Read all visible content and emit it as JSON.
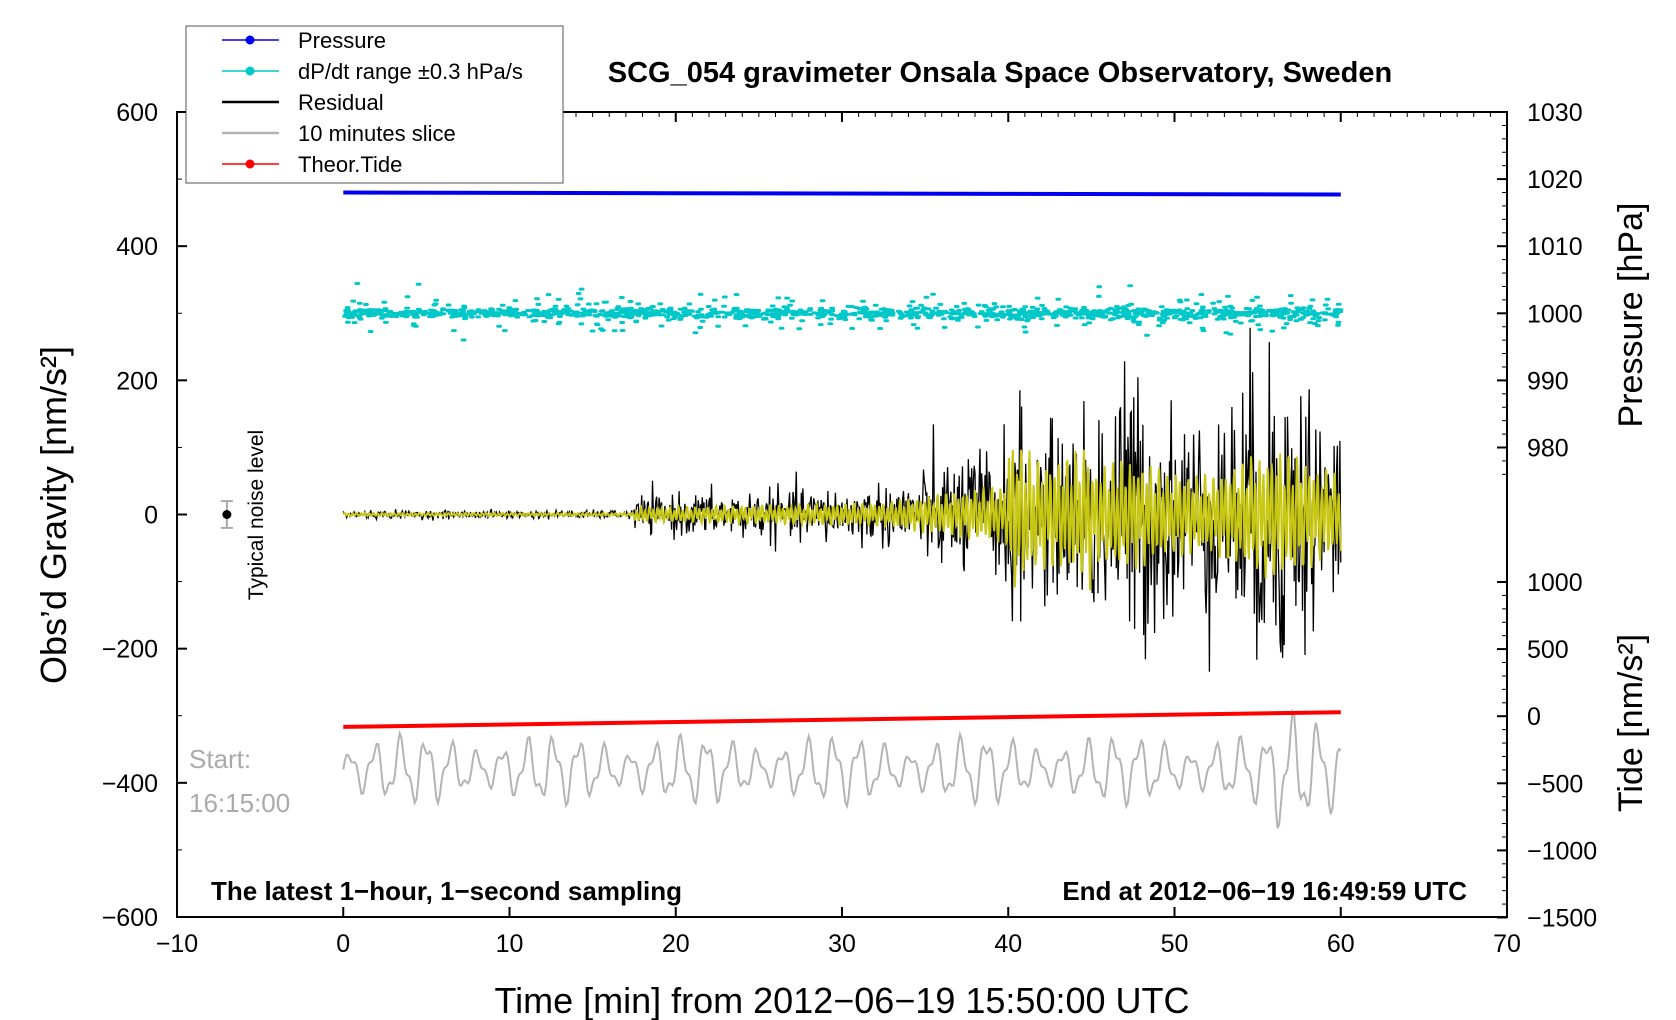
{
  "chart_data": {
    "type": "line",
    "title": "SCG_054 gravimeter Onsala Space Observatory, Sweden",
    "xlabel": "Time [min] from 2012−06−19 15:50:00 UTC",
    "ylabel_left": "Obs’d Gravity [nm/s²]",
    "ylabel_right_top": "Pressure [hPa]",
    "ylabel_right_bottom": "Tide [nm/s²]",
    "xlim": [
      -10,
      70
    ],
    "ylim_left": [
      -600,
      600
    ],
    "ylim_pressure": [
      970,
      1030
    ],
    "ylim_tide": [
      -1500,
      1000
    ],
    "x_ticks": [
      "−10",
      "0",
      "10",
      "20",
      "30",
      "40",
      "50",
      "60",
      "70"
    ],
    "x_tick_values": [
      -10,
      0,
      10,
      20,
      30,
      40,
      50,
      60,
      70
    ],
    "y_left_ticks": [
      "600",
      "400",
      "200",
      "0",
      "−200",
      "−400",
      "−600"
    ],
    "y_left_tick_values": [
      600,
      400,
      200,
      0,
      -200,
      -400,
      -600
    ],
    "pressure_ticks": [
      "1030",
      "1020",
      "1010",
      "1000",
      "990",
      "980"
    ],
    "pressure_tick_values": [
      1030,
      1020,
      1010,
      1000,
      990,
      980
    ],
    "tide_ticks": [
      "1000",
      "500",
      "0",
      "−500",
      "−1000",
      "−1500"
    ],
    "tide_tick_values": [
      1000,
      500,
      0,
      -500,
      -1000,
      -1500
    ],
    "legend": [
      {
        "label": "Pressure",
        "color": "#0000ee",
        "marker": true
      },
      {
        "label": "dP/dt range ±0.3 hPa/s",
        "color": "#00c8c8",
        "marker": true
      },
      {
        "label": "Residual",
        "color": "#000000",
        "marker": false
      },
      {
        "label": "10 minutes slice",
        "color": "#b4b4b4",
        "marker": false
      },
      {
        "label": "Theor.Tide",
        "color": "#ff0000",
        "marker": true
      }
    ],
    "series": [
      {
        "name": "Pressure",
        "axis": "pressure",
        "x": [
          0,
          20,
          40,
          60
        ],
        "values": [
          1018.0,
          1017.9,
          1017.8,
          1017.7
        ],
        "color": "#0000ee"
      },
      {
        "name": "Theor.Tide",
        "axis": "tide",
        "x": [
          0,
          60
        ],
        "values": [
          -80,
          30
        ],
        "color": "#ff0000"
      },
      {
        "name": "dP/dt range ±0.3 hPa/s",
        "axis": "left",
        "center": 300,
        "spread": 35,
        "color": "#00c8c8"
      },
      {
        "name": "Residual",
        "axis": "left",
        "center": 0,
        "peak": 250,
        "color": "#000000"
      },
      {
        "name": "Filtered residual",
        "axis": "left",
        "center": 0,
        "peak": 120,
        "color": "#c8c814"
      },
      {
        "name": "10 minutes slice",
        "axis": "left",
        "center": -380,
        "peak": 90,
        "color": "#b4b4b4"
      }
    ],
    "noise_marker": {
      "label": "Typical noise level",
      "x": -7,
      "value": 0,
      "error": 20
    },
    "annotations": {
      "start_line1": "Start:",
      "start_line2": "16:15:00",
      "latest": "The latest 1−hour, 1−second sampling",
      "end": "End at 2012−06−19 16:49:59 UTC"
    }
  }
}
